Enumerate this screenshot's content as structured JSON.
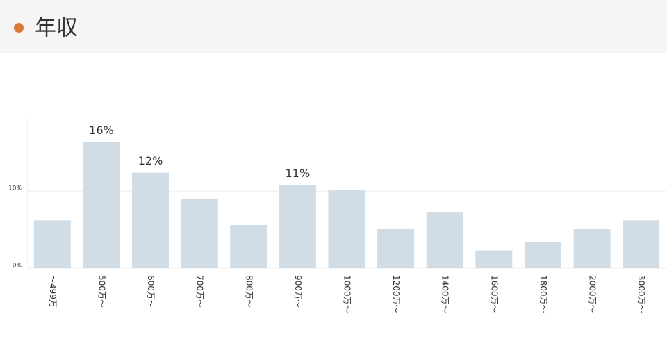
{
  "header": {
    "title": "年収"
  },
  "chart_data": {
    "type": "bar",
    "categories": [
      "〜499万",
      "500万〜",
      "600万〜",
      "700万〜",
      "800万〜",
      "900万〜",
      "1000万〜",
      "1200万〜",
      "1400万〜",
      "1600万〜",
      "1800万〜",
      "2000万〜",
      "3000万〜"
    ],
    "values": [
      6.2,
      16.4,
      12.4,
      9.0,
      5.6,
      10.8,
      10.2,
      5.1,
      7.3,
      2.3,
      3.4,
      5.1,
      6.2
    ],
    "value_labels": [
      null,
      "16%",
      "12%",
      null,
      null,
      "11%",
      null,
      null,
      null,
      null,
      null,
      null,
      null
    ],
    "color": "#d0dce6",
    "ylim": [
      0,
      19.5
    ],
    "yticks": [
      {
        "value": 0,
        "label": "0%"
      },
      {
        "value": 10,
        "label": "10%"
      }
    ],
    "grid": true
  }
}
